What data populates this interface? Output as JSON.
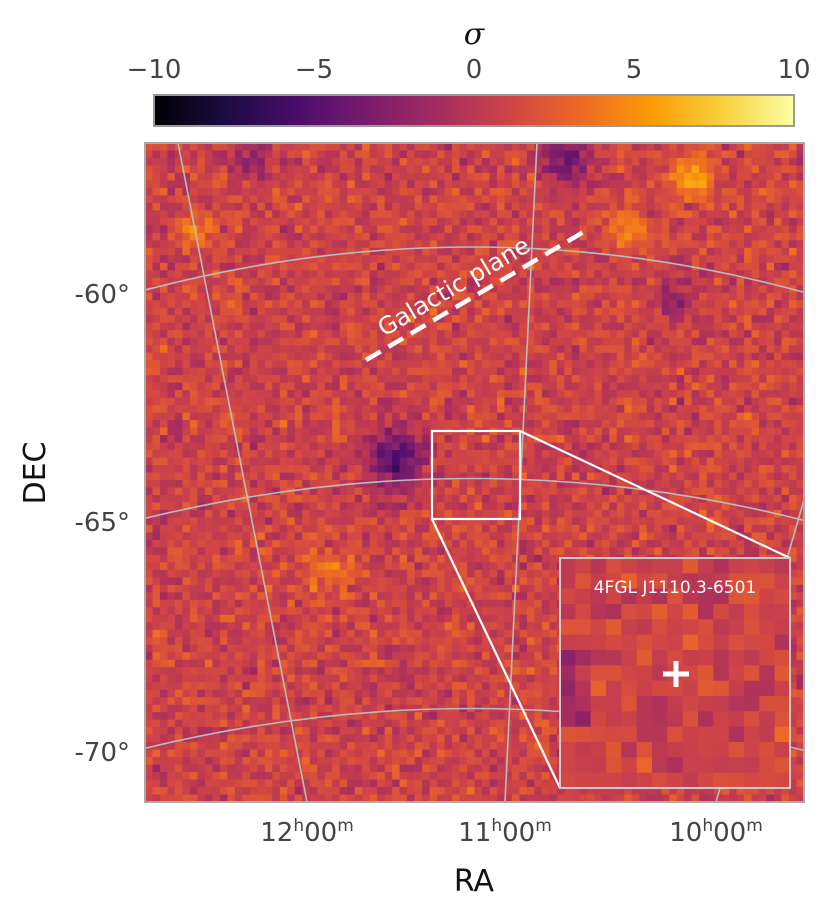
{
  "chart_data": {
    "type": "heatmap",
    "description_units": "significance map in sky coordinates",
    "colorbar": {
      "label": "σ",
      "ticks": [
        "−10",
        "−5",
        "0",
        "5",
        "10"
      ],
      "range": [
        -10,
        10
      ],
      "colormap": "inferno",
      "stops": [
        "#000004",
        "#1b0c41",
        "#4a0c6b",
        "#781c6d",
        "#a52c60",
        "#cf4446",
        "#ed6925",
        "#fb9b06",
        "#f7d13d",
        "#fcffa4"
      ]
    },
    "xlabel": "RA",
    "ylabel": "DEC",
    "x_ticks": [
      {
        "h": "12",
        "hsup": "h",
        "m": "00",
        "msup": "m"
      },
      {
        "h": "11",
        "hsup": "h",
        "m": "00",
        "msup": "m"
      },
      {
        "h": "10",
        "hsup": "h",
        "m": "00",
        "msup": "m"
      }
    ],
    "y_ticks": [
      "-60°",
      "-65°",
      "-70°"
    ],
    "grid": true,
    "annotation": "Galactic plane",
    "inset": {
      "title": "4FGL J1110.3-6501",
      "marker": "+"
    },
    "background_sigma_mean": 1.0,
    "features": [
      {
        "kind": "deficit",
        "sigma": -6
      },
      {
        "kind": "deficit",
        "sigma": -5
      },
      {
        "kind": "excess",
        "sigma": 5
      }
    ]
  }
}
